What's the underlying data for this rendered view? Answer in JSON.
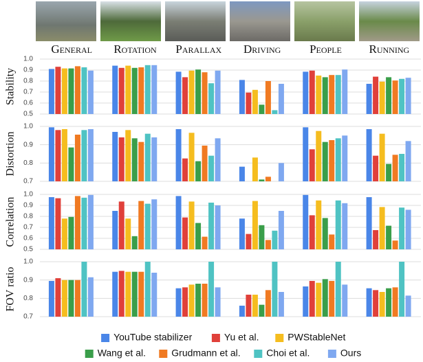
{
  "chart_data": {
    "type": "bar",
    "categories": [
      "General",
      "Rotation",
      "Parallax",
      "Driving",
      "People",
      "Running"
    ],
    "legend": [
      {
        "name": "YouTube stabilizer",
        "color": "#4a86e8"
      },
      {
        "name": "Yu et al.",
        "color": "#e0403a"
      },
      {
        "name": "PWStableNet",
        "color": "#f5bd1f"
      },
      {
        "name": "Wang et al.",
        "color": "#3a9e4a"
      },
      {
        "name": "Grudmann et al.",
        "color": "#f07a22"
      },
      {
        "name": "Choi et al.",
        "color": "#4fc3c3"
      },
      {
        "name": "Ours",
        "color": "#7fa8f0"
      }
    ],
    "charts": [
      {
        "ylabel": "Stability",
        "ylim": [
          0.5,
          1.0
        ],
        "yticks": [
          0.5,
          0.6,
          0.7,
          0.8,
          0.9,
          {
            "value": 1.0,
            "label": "1.0"
          }
        ],
        "series": [
          [
            0.91,
            0.94,
            0.885,
            0.81,
            0.885,
            0.775
          ],
          [
            0.93,
            0.92,
            0.835,
            0.695,
            0.895,
            0.84
          ],
          [
            0.915,
            0.94,
            0.895,
            0.72,
            0.85,
            0.795
          ],
          [
            0.915,
            0.92,
            0.905,
            0.585,
            0.835,
            0.835
          ],
          [
            0.935,
            0.925,
            0.88,
            0.8,
            0.855,
            0.805
          ],
          [
            0.925,
            0.945,
            0.78,
            0.535,
            0.855,
            0.82
          ],
          [
            0.895,
            0.945,
            0.895,
            0.775,
            0.905,
            0.83
          ]
        ]
      },
      {
        "ylabel": "Distortion",
        "ylim": [
          0.7,
          1.0
        ],
        "yticks": [
          0.7,
          0.8,
          0.9,
          {
            "value": 1.0,
            "label": "1.0"
          }
        ],
        "series": [
          [
            0.995,
            0.97,
            0.985,
            0.78,
            0.995,
            0.985
          ],
          [
            0.98,
            0.94,
            0.825,
            null,
            0.875,
            0.84
          ],
          [
            0.985,
            0.98,
            0.965,
            0.83,
            0.975,
            0.96
          ],
          [
            0.885,
            0.935,
            0.81,
            0.71,
            0.915,
            0.795
          ],
          [
            0.955,
            0.915,
            0.895,
            0.725,
            0.925,
            0.845
          ],
          [
            0.98,
            0.96,
            0.84,
            null,
            0.935,
            0.85
          ],
          [
            0.985,
            0.94,
            0.935,
            0.8,
            0.95,
            0.92
          ]
        ]
      },
      {
        "ylabel": "Correlation",
        "ylim": [
          0.5,
          1.0
        ],
        "yticks": [
          0.5,
          0.6,
          0.7,
          0.8,
          0.9,
          {
            "value": 1.0,
            "label": "1.0"
          }
        ],
        "series": [
          [
            0.975,
            0.85,
            0.985,
            0.78,
            0.995,
            0.975
          ],
          [
            0.965,
            0.935,
            0.79,
            0.64,
            0.81,
            0.675
          ],
          [
            0.78,
            0.78,
            0.935,
            0.94,
            0.945,
            0.885
          ],
          [
            0.795,
            0.62,
            0.74,
            0.72,
            0.785,
            0.715
          ],
          [
            0.985,
            0.94,
            0.615,
            0.585,
            0.635,
            0.58
          ],
          [
            0.97,
            0.915,
            0.925,
            0.67,
            0.945,
            0.88
          ],
          [
            0.995,
            0.955,
            0.9,
            0.85,
            0.92,
            0.86
          ]
        ]
      },
      {
        "ylabel": "FOV ratio",
        "ylim": [
          0.7,
          1.0
        ],
        "yticks": [
          0.7,
          0.8,
          0.9,
          {
            "value": 1.0,
            "label": "1.0"
          }
        ],
        "series": [
          [
            0.895,
            0.945,
            0.855,
            0.76,
            0.865,
            0.855
          ],
          [
            0.91,
            0.95,
            0.86,
            0.82,
            0.895,
            0.845
          ],
          [
            0.9,
            0.945,
            0.875,
            0.82,
            0.885,
            0.835
          ],
          [
            0.9,
            0.945,
            0.88,
            0.765,
            0.905,
            0.855
          ],
          [
            0.9,
            0.945,
            0.88,
            0.845,
            0.895,
            0.86
          ],
          [
            1.0,
            1.0,
            1.0,
            1.0,
            1.0,
            1.0
          ],
          [
            0.915,
            0.94,
            0.86,
            0.835,
            0.875,
            0.815
          ]
        ]
      }
    ]
  }
}
